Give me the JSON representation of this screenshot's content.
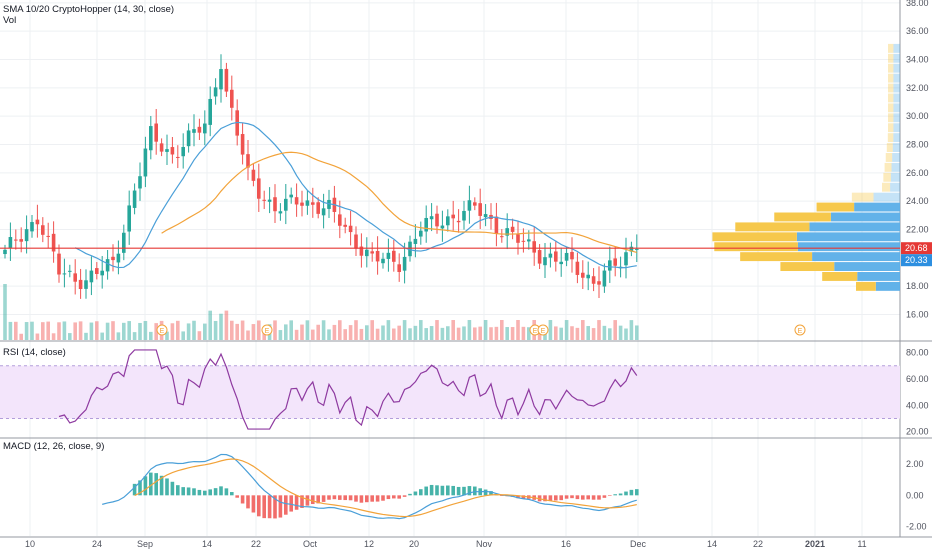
{
  "legend": {
    "sma_label": "SMA 10/20 CryptoHopper (14, 30, close)",
    "vol_label": "Vol",
    "rsi_label": "RSI (14, close)",
    "macd_label": "MACD (12, 26, close, 9)"
  },
  "colors": {
    "up": "#26a69a",
    "down": "#ef5350",
    "sma_fast": "#4a9fd8",
    "sma_slow": "#f2a33a",
    "price_line": "#e53935",
    "rsi_line": "#8e3aa0",
    "rsi_band": "#f3e5fb",
    "macd_line": "#4a9fd8",
    "signal_line": "#f2a33a",
    "vp_blue": "#5aaee8",
    "vp_yellow": "#f5c542",
    "grid": "#eef0f3"
  },
  "chart_data": [
    {
      "type": "candlestick",
      "panel": "price",
      "x_ticks": [
        "10",
        "24",
        "Sep",
        "14",
        "22",
        "Oct",
        "12",
        "20",
        "Nov",
        "16",
        "Dec",
        "14",
        "22",
        "2021",
        "11"
      ],
      "y_ticks": [
        "16.00",
        "18.00",
        "20.00",
        "22.00",
        "24.00",
        "26.00",
        "28.00",
        "30.00",
        "32.00",
        "34.00",
        "36.00",
        "38.00"
      ],
      "ylim": [
        14.2,
        38.2
      ],
      "last_price_labels": [
        "20.68",
        "20.33"
      ],
      "price_line_value": 20.68,
      "series": [
        {
          "name": "SMA 10/20 CryptoHopper (14, 30, close)",
          "kind": "fast"
        },
        {
          "name": "SMA 10/20 CryptoHopper (14, 30, close)",
          "kind": "slow"
        }
      ],
      "volume_label": "Vol",
      "event_markers": [
        "E",
        "E",
        "E",
        "E",
        "E"
      ]
    },
    {
      "type": "line",
      "panel": "rsi",
      "series": [
        {
          "name": "RSI (14, close)"
        }
      ],
      "y_ticks": [
        "20.00",
        "40.00",
        "60.00",
        "80.00"
      ],
      "ylim": [
        16,
        88
      ],
      "band": [
        30,
        70
      ]
    },
    {
      "type": "line",
      "panel": "macd",
      "series": [
        {
          "name": "MACD (12, 26, close, 9)"
        }
      ],
      "y_ticks": [
        "-2.00",
        "0.00",
        "2.00"
      ],
      "ylim": [
        -2.6,
        3.6
      ]
    }
  ]
}
